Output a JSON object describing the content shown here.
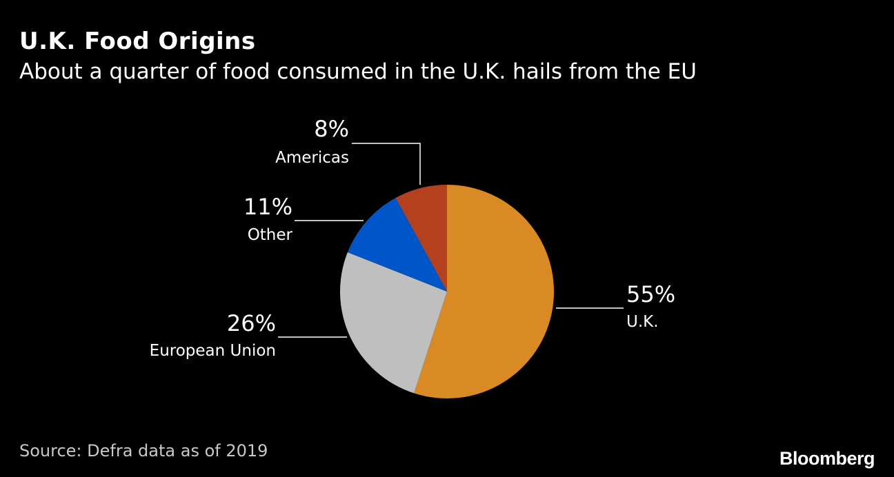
{
  "header": {
    "title": "U.K. Food Origins",
    "subtitle": "About a quarter of food consumed in the U.K. hails from the EU"
  },
  "footer": {
    "source": "Source: Defra data as of 2019",
    "brand": "Bloomberg"
  },
  "chart_data": {
    "type": "pie",
    "title": "U.K. Food Origins",
    "subtitle": "About a quarter of food consumed in the U.K. hails from the EU",
    "slices": [
      {
        "label": "U.K.",
        "value": 55,
        "value_label": "55%",
        "color": "#D98A24"
      },
      {
        "label": "European Union",
        "value": 26,
        "value_label": "26%",
        "color": "#BFBFBF"
      },
      {
        "label": "Other",
        "value": 11,
        "value_label": "11%",
        "color": "#0055C8"
      },
      {
        "label": "Americas",
        "value": 8,
        "value_label": "8%",
        "color": "#B5401D"
      }
    ],
    "start_angle_direction": "clockwise from top",
    "legend": "none"
  }
}
